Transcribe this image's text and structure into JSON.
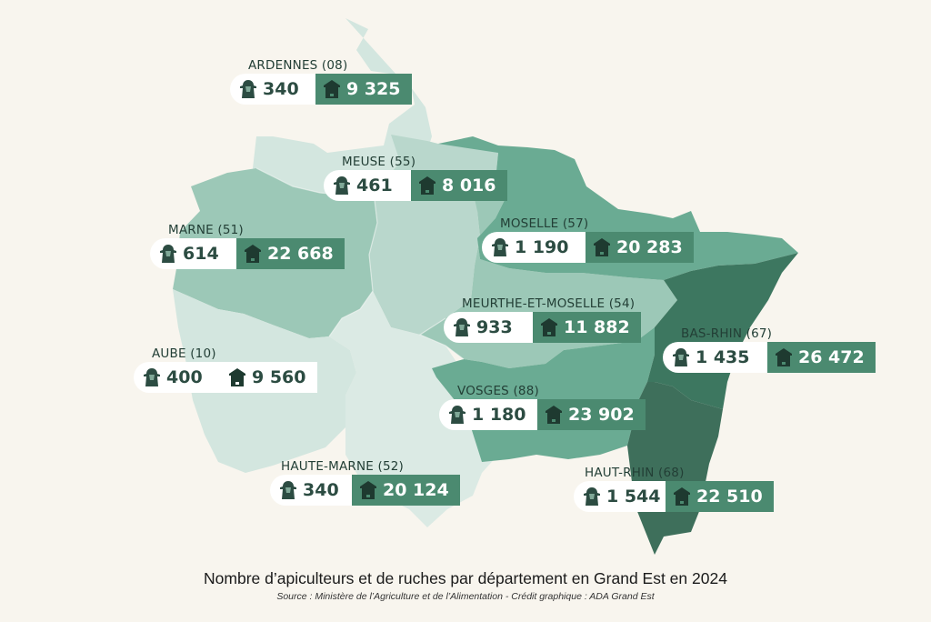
{
  "departments": [
    {
      "id": "ardennes",
      "name": "ARDENNES (08)",
      "beekeepers": "340",
      "hives": "9 325",
      "color": "#d3e6df"
    },
    {
      "id": "meuse",
      "name": "MEUSE (55)",
      "beekeepers": "461",
      "hives": "8 016",
      "color": "#b9d7cc"
    },
    {
      "id": "marne",
      "name": "MARNE (51)",
      "beekeepers": "614",
      "hives": "22 668",
      "color": "#9cc8b7"
    },
    {
      "id": "moselle",
      "name": "MOSELLE (57)",
      "beekeepers": "1 190",
      "hives": "20 283",
      "color": "#6aab93"
    },
    {
      "id": "meurthe-et-moselle",
      "name": "MEURTHE-ET-MOSELLE (54)",
      "beekeepers": "933",
      "hives": "11 882",
      "color": "#9cc8b7"
    },
    {
      "id": "aube",
      "name": "AUBE (10)",
      "beekeepers": "400",
      "hives": "9 560",
      "color": "#d3e6df"
    },
    {
      "id": "bas-rhin",
      "name": "BAS-RHIN (67)",
      "beekeepers": "1 435",
      "hives": "26 472",
      "color": "#3d7760"
    },
    {
      "id": "vosges",
      "name": "VOSGES (88)",
      "beekeepers": "1 180",
      "hives": "23 902",
      "color": "#6aab93"
    },
    {
      "id": "haute-marne",
      "name": "HAUTE-MARNE (52)",
      "beekeepers": "340",
      "hives": "20 124",
      "color": "#dbeae4"
    },
    {
      "id": "haut-rhin",
      "name": "HAUT-RHIN (68)",
      "beekeepers": "1 544",
      "hives": "22 510",
      "color": "#3e6f5b"
    }
  ],
  "caption": "Nombre d’apiculteurs et de ruches par département en Grand Est en 2024",
  "source": "Source : Ministère de l’Agriculture et de l’Alimentation - Crédit graphique : ADA Grand Est",
  "icons": {
    "beekeeper": "beekeeper-veil-icon",
    "hive": "beehive-icon"
  },
  "colors": {
    "background": "#f8f5ee",
    "hive_box": "#4b8a70",
    "text": "#2c4c42"
  }
}
